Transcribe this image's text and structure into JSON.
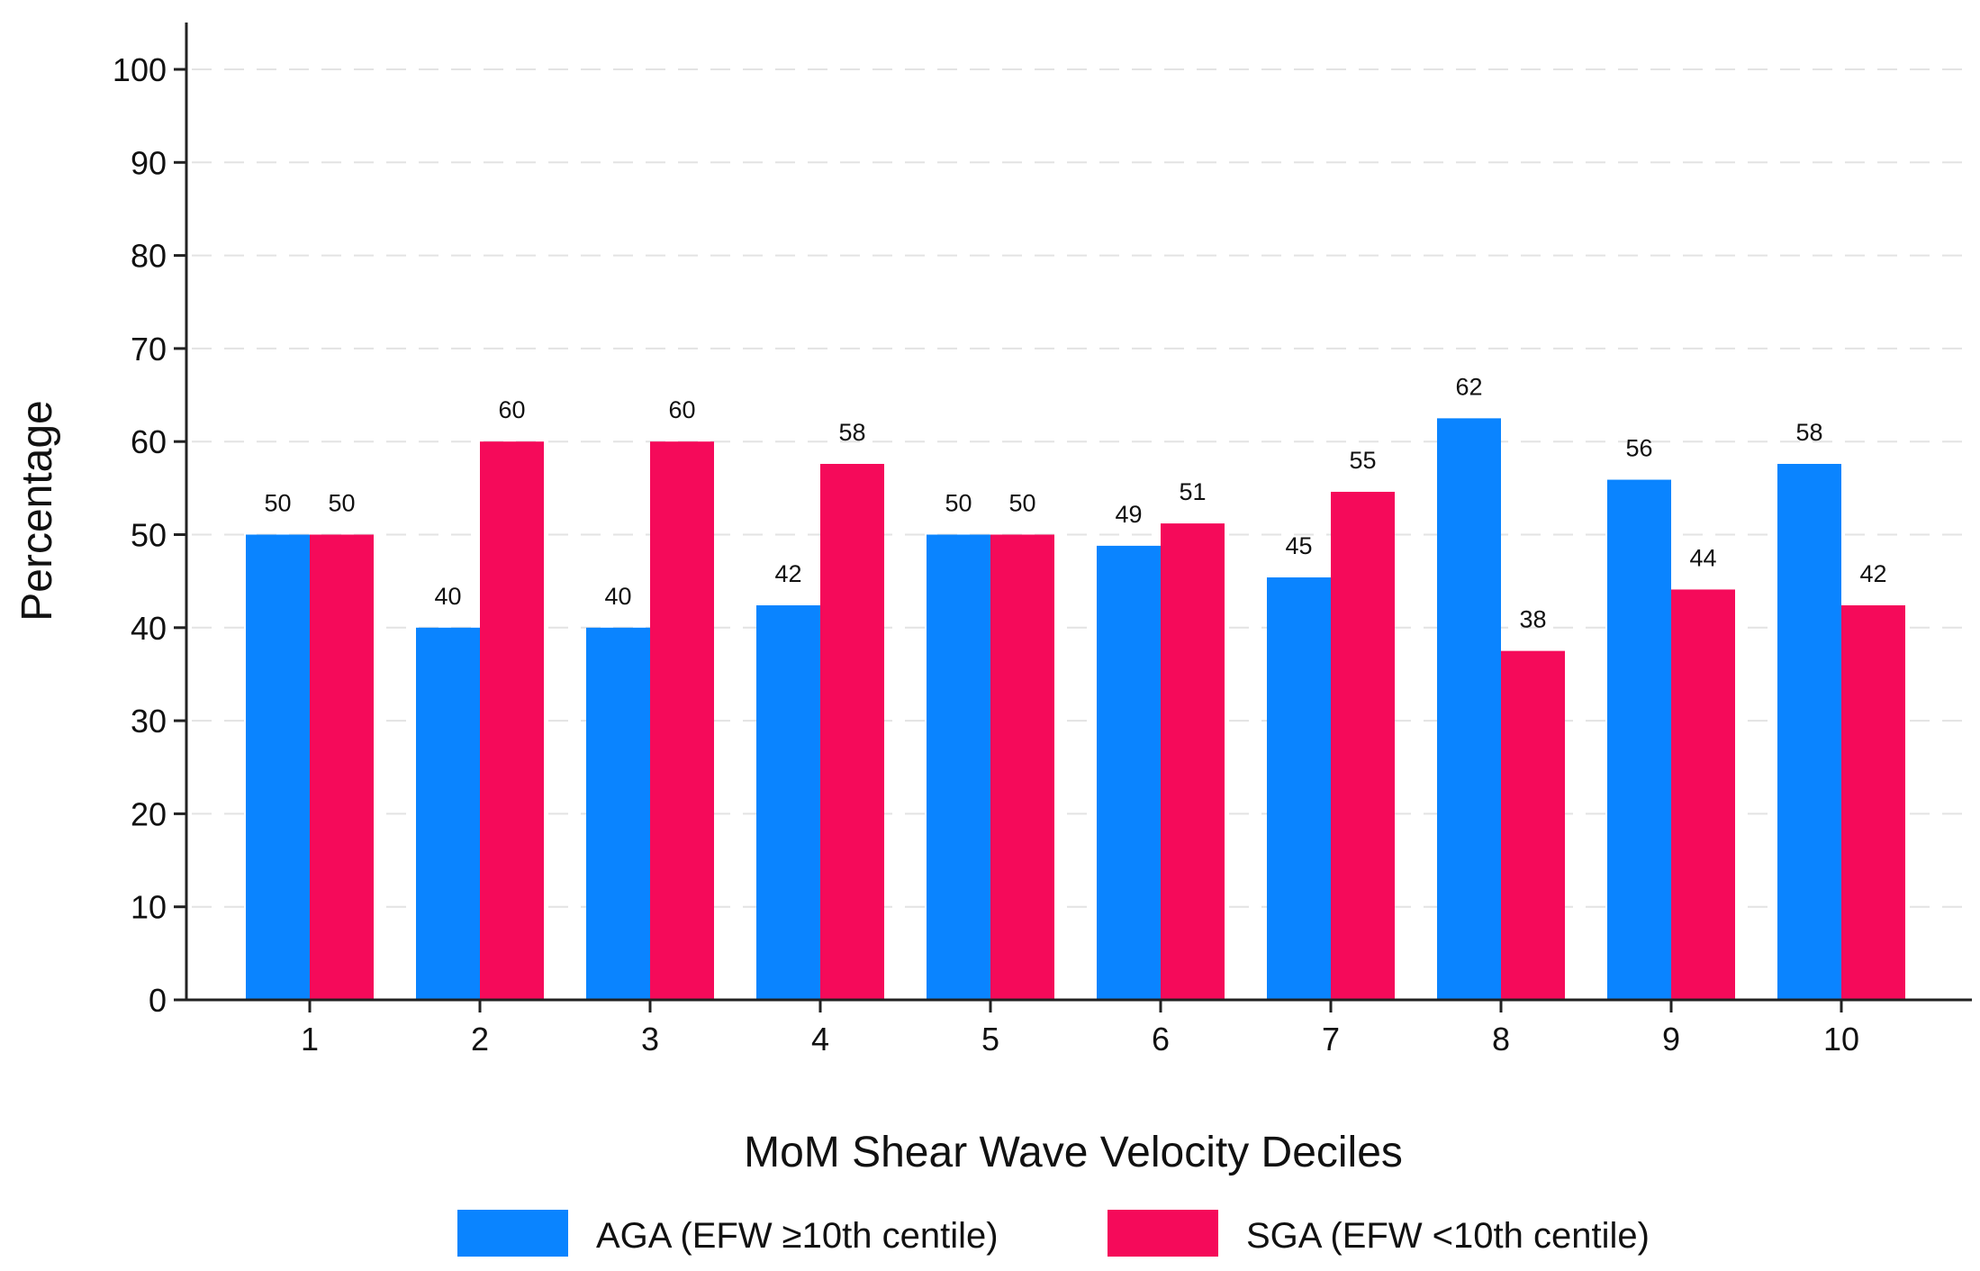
{
  "chart_data": {
    "type": "bar",
    "title": "",
    "xlabel": "MoM Shear Wave Velocity Deciles",
    "ylabel": "Percentage",
    "categories": [
      "1",
      "2",
      "3",
      "4",
      "5",
      "6",
      "7",
      "8",
      "9",
      "10"
    ],
    "series": [
      {
        "name": "AGA (EFW ≥10th centile)",
        "color": "#0a84ff",
        "values": [
          50,
          40,
          40,
          42.4,
          50,
          48.8,
          45.4,
          62.5,
          55.9,
          57.6
        ],
        "labels": [
          "50",
          "40",
          "40",
          "42",
          "50",
          "49",
          "45",
          "62",
          "56",
          "58"
        ]
      },
      {
        "name": "SGA (EFW <10th centile)",
        "color": "#f50a5a",
        "values": [
          50,
          60,
          60,
          57.6,
          50,
          51.2,
          54.6,
          37.5,
          44.1,
          42.4
        ],
        "labels": [
          "50",
          "60",
          "60",
          "58",
          "50",
          "51",
          "55",
          "38",
          "44",
          "42"
        ]
      }
    ],
    "ylim": [
      0,
      100
    ],
    "yticks": [
      0,
      10,
      20,
      30,
      40,
      50,
      60,
      70,
      80,
      90,
      100
    ],
    "grid": true,
    "legend": "bottom"
  }
}
